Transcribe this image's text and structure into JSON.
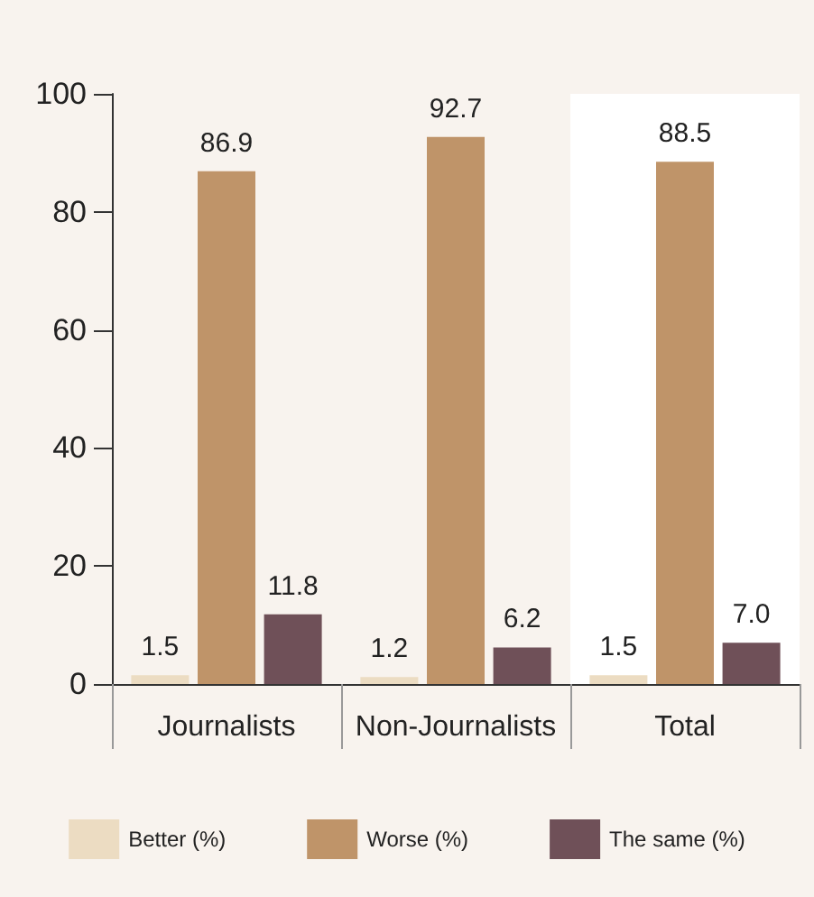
{
  "chart_data": {
    "type": "bar",
    "categories": [
      "Journalists",
      "Non-Journalists",
      "Total"
    ],
    "series": [
      {
        "name": "Better (%)",
        "color": "#ecdcc2",
        "values": [
          1.5,
          1.2,
          1.5
        ],
        "value_labels": [
          "1.5",
          "1.2",
          "1.5"
        ]
      },
      {
        "name": "Worse (%)",
        "color": "#bf9469",
        "values": [
          86.9,
          92.7,
          88.5
        ],
        "value_labels": [
          "86.9",
          "92.7",
          "88.5"
        ]
      },
      {
        "name": "The same (%)",
        "color": "#6f5058",
        "values": [
          11.8,
          6.2,
          7.0
        ],
        "value_labels": [
          "11.8",
          "6.2",
          "7.0"
        ]
      }
    ],
    "bands": [
      {
        "axis": "x",
        "from": "Total",
        "to": "Total",
        "color": "#ffffff"
      }
    ],
    "ylim": [
      0,
      100
    ],
    "yticks": [
      0,
      20,
      40,
      60,
      80,
      100
    ],
    "grid": false,
    "legend": "bottom"
  }
}
